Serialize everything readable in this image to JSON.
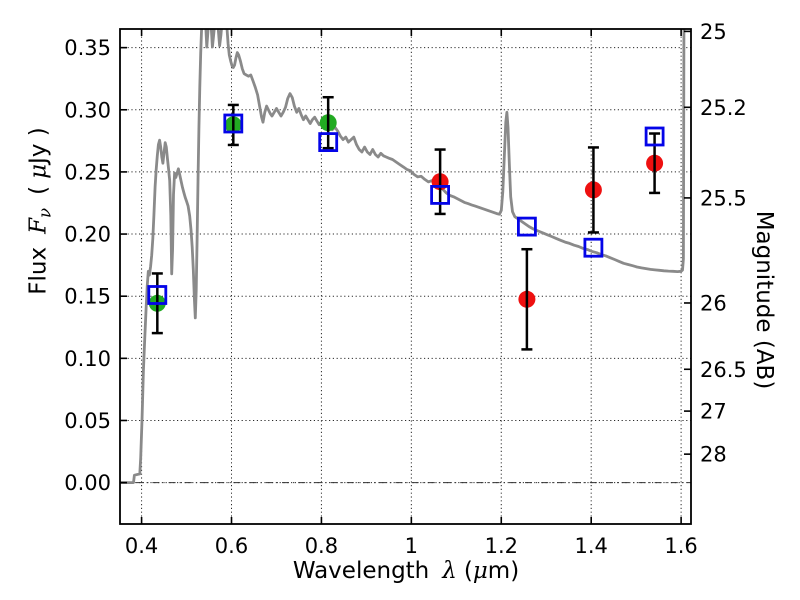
{
  "colors": {
    "spectrum": "#8a8a8a",
    "model_square": "#0404e8",
    "ground_circle": "#22aa22",
    "hst_circle": "#ee1010",
    "errorbar": "#000000",
    "grid": "#2a2a2a",
    "axis": "#000000",
    "background": "#ffffff"
  },
  "xlabel": {
    "text": "Wavelength",
    "symbol": "λ",
    "open": "(",
    "mu": "μ",
    "close": "m)"
  },
  "ylabel": {
    "text": "Flux",
    "f": "F",
    "nu": "ν",
    "open": "(",
    "mu": "μ",
    "unit": "Jy )"
  },
  "y2label": {
    "text": "Magnitude (AB)"
  },
  "chart_data": {
    "type": "line+scatter",
    "title": "",
    "xlabel": "Wavelength λ (μm)",
    "ylabel": "Flux Fν ( μJy )",
    "y2label": "Magnitude (AB)",
    "xlim": [
      0.352,
      1.622
    ],
    "ylim": [
      -0.0333,
      0.365
    ],
    "grid": "dotted",
    "zero_line": true,
    "x_ticks": {
      "values": [
        0.4,
        0.6,
        0.8,
        1.0,
        1.2,
        1.4,
        1.6
      ],
      "labels": [
        "0.4",
        "0.6",
        "0.8",
        "1",
        "1.2",
        "1.4",
        "1.6"
      ]
    },
    "y_ticks": {
      "values": [
        0.0,
        0.05,
        0.1,
        0.15,
        0.2,
        0.25,
        0.3,
        0.35
      ],
      "labels": [
        "0.00",
        "0.05",
        "0.10",
        "0.15",
        "0.20",
        "0.25",
        "0.30",
        "0.35"
      ]
    },
    "mag_ticks": {
      "values": [
        25,
        25.2,
        25.5,
        26,
        26.5,
        27,
        28
      ],
      "labels": [
        "25",
        "25.2",
        "25.5",
        "26",
        "26.5",
        "27",
        "28"
      ],
      "ab_zeropoint": 23.9
    },
    "series": [
      {
        "name": "model-spectrum",
        "type": "line",
        "marker": "none",
        "points": [
          [
            0.352,
            0.0
          ],
          [
            0.382,
            0.0
          ],
          [
            0.384,
            0.006
          ],
          [
            0.396,
            0.007
          ],
          [
            0.398,
            0.02
          ],
          [
            0.401,
            0.05
          ],
          [
            0.404,
            0.09
          ],
          [
            0.407,
            0.115
          ],
          [
            0.41,
            0.14
          ],
          [
            0.4125,
            0.158
          ],
          [
            0.415,
            0.17
          ],
          [
            0.4175,
            0.167
          ],
          [
            0.42,
            0.174
          ],
          [
            0.4225,
            0.183
          ],
          [
            0.425,
            0.196
          ],
          [
            0.4275,
            0.215
          ],
          [
            0.43,
            0.238
          ],
          [
            0.4325,
            0.252
          ],
          [
            0.435,
            0.263
          ],
          [
            0.4375,
            0.272
          ],
          [
            0.44,
            0.2755
          ],
          [
            0.4425,
            0.27
          ],
          [
            0.445,
            0.262
          ],
          [
            0.4475,
            0.257
          ],
          [
            0.45,
            0.266
          ],
          [
            0.4525,
            0.2735
          ],
          [
            0.455,
            0.27
          ],
          [
            0.4575,
            0.261
          ],
          [
            0.46,
            0.252
          ],
          [
            0.4625,
            0.243
          ],
          [
            0.465,
            0.215
          ],
          [
            0.467,
            0.168
          ],
          [
            0.469,
            0.188
          ],
          [
            0.471,
            0.232
          ],
          [
            0.4735,
            0.249
          ],
          [
            0.476,
            0.2455
          ],
          [
            0.479,
            0.249
          ],
          [
            0.482,
            0.2525
          ],
          [
            0.485,
            0.2475
          ],
          [
            0.488,
            0.2425
          ],
          [
            0.491,
            0.2375
          ],
          [
            0.494,
            0.2335
          ],
          [
            0.497,
            0.2295
          ],
          [
            0.5,
            0.2265
          ],
          [
            0.5035,
            0.2225
          ],
          [
            0.507,
            0.2145
          ],
          [
            0.51,
            0.2035
          ],
          [
            0.5125,
            0.1895
          ],
          [
            0.515,
            0.1715
          ],
          [
            0.5175,
            0.1475
          ],
          [
            0.5195,
            0.1325
          ],
          [
            0.5215,
            0.1545
          ],
          [
            0.5235,
            0.1955
          ],
          [
            0.5255,
            0.2425
          ],
          [
            0.5275,
            0.2845
          ],
          [
            0.5295,
            0.3185
          ],
          [
            0.5315,
            0.3455
          ],
          [
            0.5335,
            0.3655
          ],
          [
            0.536,
            0.378
          ],
          [
            0.54,
            0.382
          ],
          [
            0.5425,
            0.37
          ],
          [
            0.545,
            0.3505
          ],
          [
            0.5475,
            0.3625
          ],
          [
            0.55,
            0.3745
          ],
          [
            0.5525,
            0.3805
          ],
          [
            0.555,
            0.3655
          ],
          [
            0.5575,
            0.3505
          ],
          [
            0.56,
            0.359
          ],
          [
            0.5635,
            0.3725
          ],
          [
            0.567,
            0.3795
          ],
          [
            0.5705,
            0.3655
          ],
          [
            0.5735,
            0.3515
          ],
          [
            0.5765,
            0.36
          ],
          [
            0.58,
            0.375
          ],
          [
            0.5835,
            0.382
          ],
          [
            0.587,
            0.376
          ],
          [
            0.59,
            0.3655
          ],
          [
            0.5925,
            0.353
          ],
          [
            0.595,
            0.344
          ],
          [
            0.598,
            0.3395
          ],
          [
            0.601,
            0.3355
          ],
          [
            0.604,
            0.334
          ],
          [
            0.607,
            0.336
          ],
          [
            0.61,
            0.342
          ],
          [
            0.613,
            0.346
          ],
          [
            0.616,
            0.344
          ],
          [
            0.62,
            0.339
          ],
          [
            0.624,
            0.333
          ],
          [
            0.628,
            0.329
          ],
          [
            0.633,
            0.328
          ],
          [
            0.638,
            0.327
          ],
          [
            0.643,
            0.328
          ],
          [
            0.648,
            0.323
          ],
          [
            0.653,
            0.318
          ],
          [
            0.658,
            0.312
          ],
          [
            0.663,
            0.302
          ],
          [
            0.667,
            0.294
          ],
          [
            0.67,
            0.29
          ],
          [
            0.674,
            0.298
          ],
          [
            0.678,
            0.303
          ],
          [
            0.682,
            0.3
          ],
          [
            0.686,
            0.297
          ],
          [
            0.69,
            0.295
          ],
          [
            0.695,
            0.298
          ],
          [
            0.7,
            0.301
          ],
          [
            0.705,
            0.298
          ],
          [
            0.71,
            0.295
          ],
          [
            0.715,
            0.298
          ],
          [
            0.72,
            0.302
          ],
          [
            0.725,
            0.309
          ],
          [
            0.73,
            0.313
          ],
          [
            0.735,
            0.31
          ],
          [
            0.74,
            0.303
          ],
          [
            0.745,
            0.298
          ],
          [
            0.75,
            0.301
          ],
          [
            0.755,
            0.296
          ],
          [
            0.76,
            0.292
          ],
          [
            0.765,
            0.295
          ],
          [
            0.77,
            0.292
          ],
          [
            0.775,
            0.289
          ],
          [
            0.78,
            0.292
          ],
          [
            0.785,
            0.294
          ],
          [
            0.79,
            0.291
          ],
          [
            0.795,
            0.288
          ],
          [
            0.8,
            0.29
          ],
          [
            0.806,
            0.292
          ],
          [
            0.812,
            0.29
          ],
          [
            0.818,
            0.287
          ],
          [
            0.824,
            0.284
          ],
          [
            0.83,
            0.286
          ],
          [
            0.836,
            0.283
          ],
          [
            0.842,
            0.279
          ],
          [
            0.848,
            0.276
          ],
          [
            0.854,
            0.278
          ],
          [
            0.86,
            0.274
          ],
          [
            0.866,
            0.276
          ],
          [
            0.872,
            0.278
          ],
          [
            0.878,
            0.272
          ],
          [
            0.884,
            0.268
          ],
          [
            0.89,
            0.266
          ],
          [
            0.896,
            0.27
          ],
          [
            0.902,
            0.266
          ],
          [
            0.908,
            0.264
          ],
          [
            0.914,
            0.268
          ],
          [
            0.92,
            0.264
          ],
          [
            0.926,
            0.262
          ],
          [
            0.932,
            0.265
          ],
          [
            0.938,
            0.263
          ],
          [
            0.944,
            0.262
          ],
          [
            0.95,
            0.261
          ],
          [
            0.958,
            0.26
          ],
          [
            0.966,
            0.258
          ],
          [
            0.974,
            0.256
          ],
          [
            0.982,
            0.254
          ],
          [
            0.99,
            0.252
          ],
          [
            0.998,
            0.251
          ],
          [
            1.006,
            0.248
          ],
          [
            1.014,
            0.246
          ],
          [
            1.022,
            0.2465
          ],
          [
            1.03,
            0.244
          ],
          [
            1.038,
            0.242
          ],
          [
            1.046,
            0.243
          ],
          [
            1.054,
            0.24
          ],
          [
            1.062,
            0.239
          ],
          [
            1.07,
            0.236
          ],
          [
            1.078,
            0.233
          ],
          [
            1.086,
            0.231
          ],
          [
            1.094,
            0.23
          ],
          [
            1.102,
            0.2285
          ],
          [
            1.11,
            0.227
          ],
          [
            1.118,
            0.2255
          ],
          [
            1.126,
            0.2245
          ],
          [
            1.134,
            0.2235
          ],
          [
            1.142,
            0.2225
          ],
          [
            1.15,
            0.2215
          ],
          [
            1.158,
            0.2205
          ],
          [
            1.166,
            0.2195
          ],
          [
            1.174,
            0.2185
          ],
          [
            1.182,
            0.2175
          ],
          [
            1.19,
            0.2165
          ],
          [
            1.196,
            0.216
          ],
          [
            1.2,
            0.219
          ],
          [
            1.2035,
            0.234
          ],
          [
            1.207,
            0.264
          ],
          [
            1.21,
            0.29
          ],
          [
            1.2125,
            0.298
          ],
          [
            1.215,
            0.286
          ],
          [
            1.218,
            0.255
          ],
          [
            1.221,
            0.23
          ],
          [
            1.225,
            0.218
          ],
          [
            1.23,
            0.214
          ],
          [
            1.238,
            0.212
          ],
          [
            1.246,
            0.21
          ],
          [
            1.254,
            0.208
          ],
          [
            1.262,
            0.206
          ],
          [
            1.272,
            0.204
          ],
          [
            1.282,
            0.2025
          ],
          [
            1.292,
            0.201
          ],
          [
            1.302,
            0.1995
          ],
          [
            1.312,
            0.198
          ],
          [
            1.322,
            0.1965
          ],
          [
            1.332,
            0.195
          ],
          [
            1.342,
            0.1935
          ],
          [
            1.352,
            0.1925
          ],
          [
            1.362,
            0.191
          ],
          [
            1.372,
            0.19
          ],
          [
            1.382,
            0.1885
          ],
          [
            1.392,
            0.1875
          ],
          [
            1.402,
            0.186
          ],
          [
            1.412,
            0.185
          ],
          [
            1.422,
            0.1835
          ],
          [
            1.432,
            0.1825
          ],
          [
            1.442,
            0.181
          ],
          [
            1.452,
            0.1795
          ],
          [
            1.462,
            0.178
          ],
          [
            1.472,
            0.1765
          ],
          [
            1.482,
            0.1755
          ],
          [
            1.492,
            0.1745
          ],
          [
            1.502,
            0.1735
          ],
          [
            1.512,
            0.1728
          ],
          [
            1.522,
            0.1722
          ],
          [
            1.532,
            0.1716
          ],
          [
            1.542,
            0.1712
          ],
          [
            1.552,
            0.1708
          ],
          [
            1.562,
            0.1704
          ],
          [
            1.572,
            0.1702
          ],
          [
            1.582,
            0.17
          ],
          [
            1.592,
            0.1698
          ],
          [
            1.6,
            0.17
          ],
          [
            1.603,
            0.171
          ],
          [
            1.605,
            0.18
          ],
          [
            1.6065,
            0.39
          ],
          [
            1.6075,
            0.395
          ]
        ]
      },
      {
        "name": "model-photometry",
        "type": "scatter",
        "marker": "open-square",
        "points": [
          [
            0.435,
            0.151
          ],
          [
            0.604,
            0.289
          ],
          [
            0.815,
            0.274
          ],
          [
            1.064,
            0.2315
          ],
          [
            1.257,
            0.206
          ],
          [
            1.405,
            0.189
          ],
          [
            1.541,
            0.2785
          ]
        ]
      },
      {
        "name": "observed-ground",
        "type": "scatter",
        "marker": "filled-circle",
        "points_with_yerr": [
          [
            0.435,
            0.1443,
            0.024
          ],
          [
            0.604,
            0.2878,
            0.0161
          ],
          [
            0.815,
            0.2896,
            0.0205
          ]
        ]
      },
      {
        "name": "observed-hst",
        "type": "scatter",
        "marker": "filled-circle",
        "points_with_yerr": [
          [
            1.064,
            0.2421,
            0.0259
          ],
          [
            1.257,
            0.1475,
            0.0403
          ],
          [
            1.405,
            0.2355,
            0.0342
          ],
          [
            1.541,
            0.257,
            0.0239
          ]
        ]
      }
    ]
  }
}
